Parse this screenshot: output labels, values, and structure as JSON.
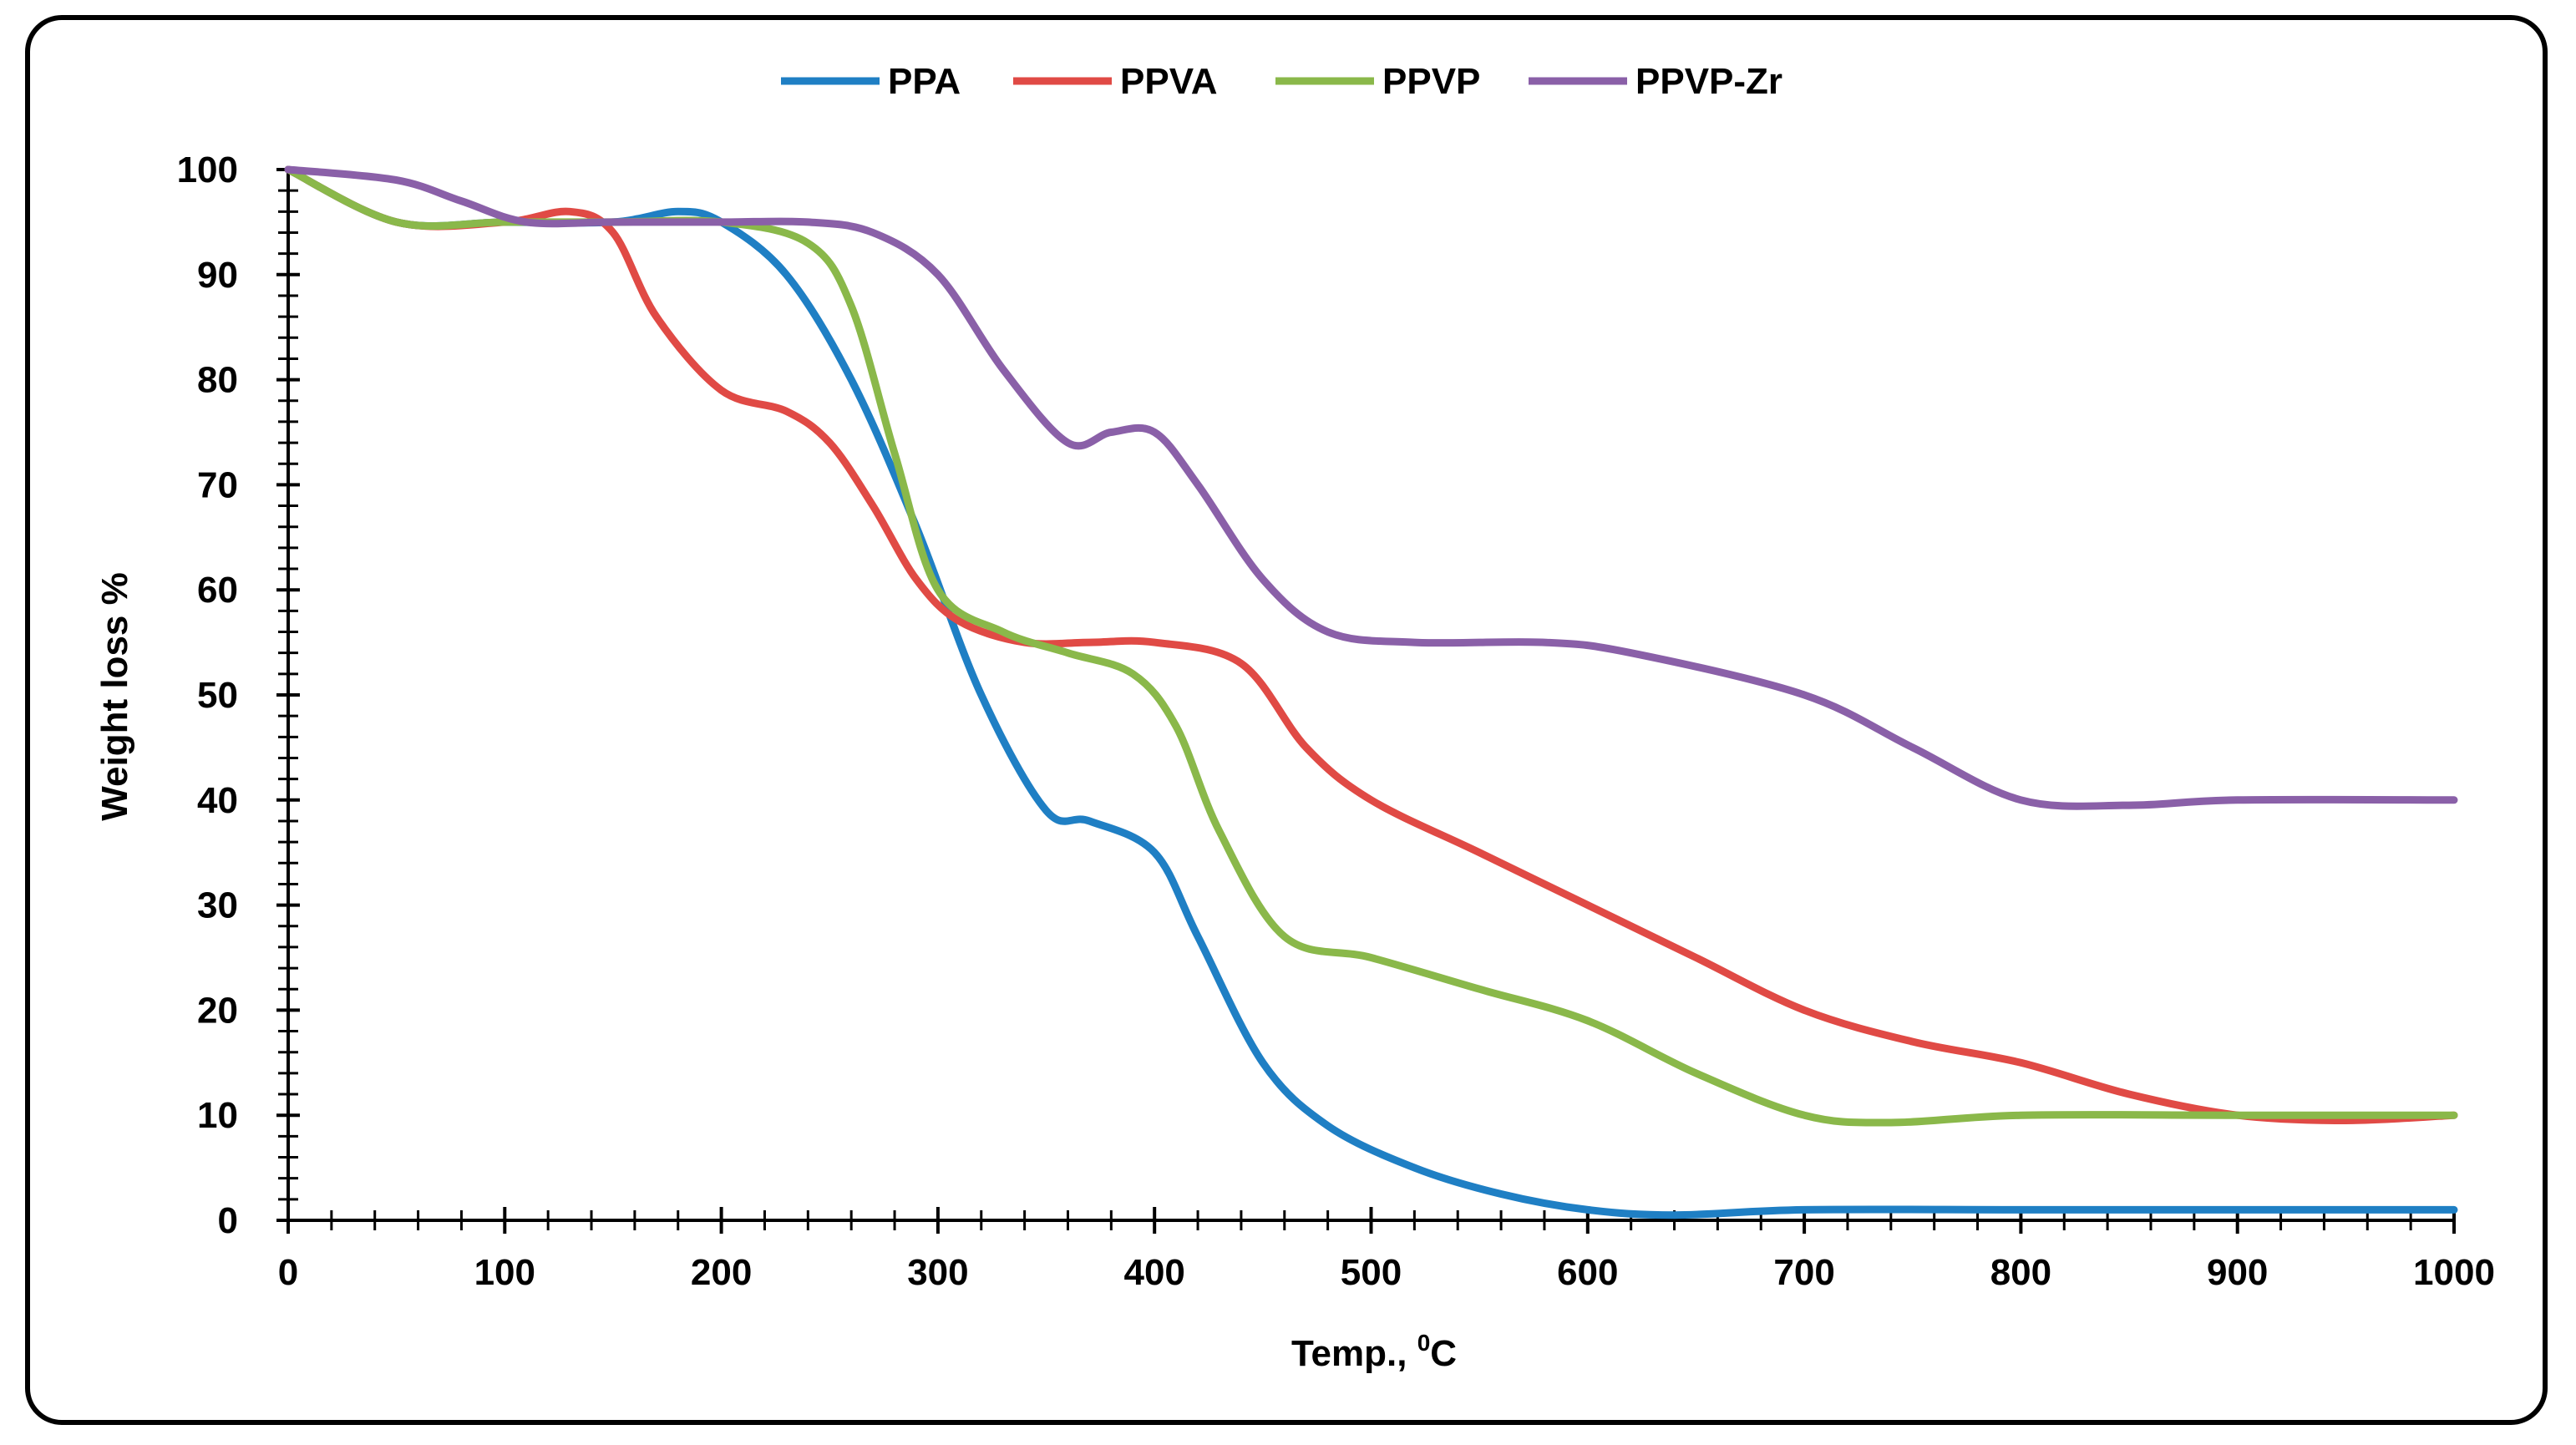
{
  "chart_data": {
    "type": "line",
    "title": "",
    "xlabel_main": "Temp., ",
    "xlabel_sup": "0",
    "xlabel_end": "C",
    "ylabel": "Weight loss %",
    "xlim": [
      0,
      1000
    ],
    "ylim": [
      0,
      100
    ],
    "x_ticks": [
      0,
      100,
      200,
      300,
      400,
      500,
      600,
      700,
      800,
      900,
      1000
    ],
    "y_ticks": [
      0,
      10,
      20,
      30,
      40,
      50,
      60,
      70,
      80,
      90,
      100
    ],
    "grid": false,
    "legend_position": "top-center",
    "series": [
      {
        "name": "PPA",
        "color": "#1f7fc4",
        "x": [
          0,
          50,
          100,
          150,
          180,
          200,
          230,
          260,
          290,
          320,
          350,
          370,
          400,
          420,
          450,
          480,
          520,
          560,
          600,
          640,
          700,
          800,
          900,
          1000
        ],
        "y": [
          100,
          95,
          95,
          95,
          96,
          95,
          90,
          80,
          66,
          50,
          39,
          38,
          35,
          27,
          15,
          9,
          5,
          2.5,
          1,
          0.5,
          1,
          1,
          1,
          1
        ]
      },
      {
        "name": "PPVA",
        "color": "#e04a45",
        "x": [
          0,
          50,
          100,
          130,
          150,
          170,
          200,
          230,
          250,
          270,
          290,
          310,
          340,
          370,
          400,
          440,
          470,
          500,
          550,
          600,
          650,
          700,
          750,
          800,
          850,
          900,
          950,
          1000
        ],
        "y": [
          100,
          95,
          95,
          96,
          94,
          86,
          79,
          77,
          74,
          68,
          61,
          57,
          55,
          55,
          55,
          53,
          45,
          40,
          35,
          30,
          25,
          20,
          17,
          15,
          12,
          10,
          9.5,
          10
        ]
      },
      {
        "name": "PPVP",
        "color": "#8ab84a",
        "x": [
          0,
          50,
          100,
          150,
          200,
          240,
          260,
          280,
          300,
          330,
          360,
          390,
          410,
          430,
          460,
          500,
          550,
          600,
          650,
          700,
          740,
          800,
          900,
          1000
        ],
        "y": [
          100,
          95,
          95,
          95,
          95,
          93,
          87,
          73,
          60,
          56,
          54,
          52,
          47,
          37,
          27,
          25,
          22,
          19,
          14,
          10,
          9.3,
          10,
          10,
          10
        ]
      },
      {
        "name": "PPVP-Zr",
        "color": "#8a60a8",
        "x": [
          0,
          50,
          80,
          110,
          150,
          200,
          240,
          270,
          300,
          330,
          360,
          380,
          400,
          420,
          450,
          480,
          520,
          580,
          620,
          700,
          750,
          800,
          850,
          900,
          1000
        ],
        "y": [
          100,
          99,
          97,
          95,
          95,
          95,
          95,
          94,
          90,
          81,
          74,
          75,
          75,
          70,
          61,
          56,
          55,
          55,
          54,
          50,
          45,
          40,
          39.5,
          40,
          40
        ]
      }
    ]
  }
}
